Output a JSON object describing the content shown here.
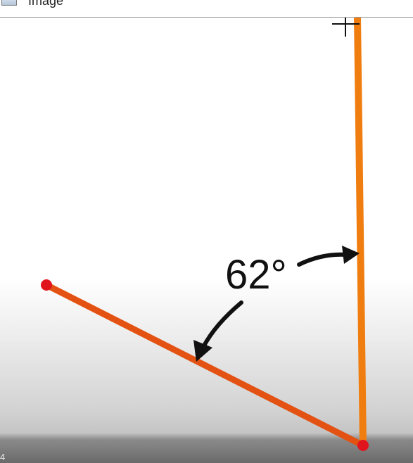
{
  "window": {
    "title": "Image"
  },
  "diagram": {
    "angle_label": "62°",
    "colors": {
      "vertical_line": "#f07d10",
      "angled_line": "#e35212",
      "endpoint": "#e0141c",
      "arrow": "#111111",
      "crosshair": "#111111"
    }
  },
  "icons": {
    "app": "image-window-icon",
    "cursor": "crosshair-cursor-icon"
  },
  "status": {
    "corner_text": "4"
  }
}
